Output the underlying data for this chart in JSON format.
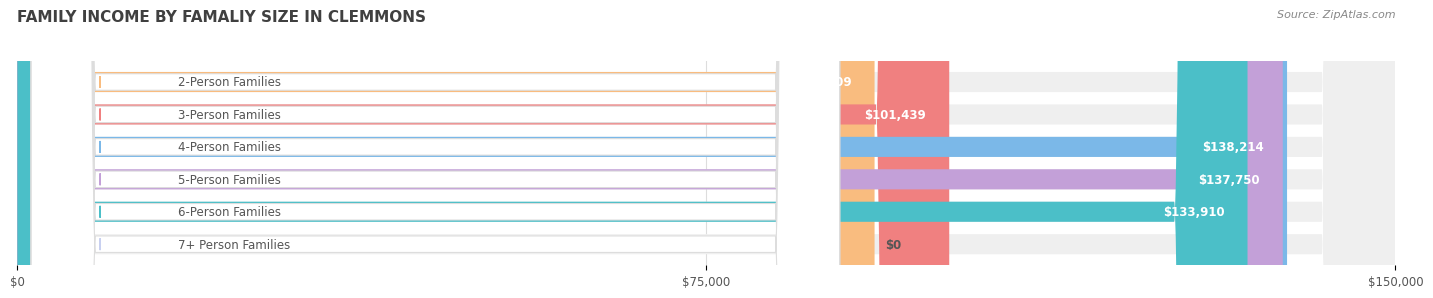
{
  "title": "FAMILY INCOME BY FAMALIY SIZE IN CLEMMONS",
  "source": "Source: ZipAtlas.com",
  "categories": [
    "2-Person Families",
    "3-Person Families",
    "4-Person Families",
    "5-Person Families",
    "6-Person Families",
    "7+ Person Families"
  ],
  "values": [
    93309,
    101439,
    138214,
    137750,
    133910,
    0
  ],
  "bar_colors": [
    "#F9BC7F",
    "#F08080",
    "#7BB8E8",
    "#C3A0D8",
    "#4BBFC8",
    "#C8D0F0"
  ],
  "bar_track_color": "#EFEFEF",
  "x_max": 150000,
  "x_ticks": [
    0,
    75000,
    150000
  ],
  "x_tick_labels": [
    "$0",
    "$75,000",
    "$150,000"
  ],
  "background_color": "#FFFFFF",
  "label_color": "#555555",
  "value_label_color": "#FFFFFF",
  "title_color": "#404040",
  "source_color": "#888888",
  "bar_height": 0.62,
  "label_fontsize": 8.5,
  "value_fontsize": 8.5,
  "title_fontsize": 11
}
